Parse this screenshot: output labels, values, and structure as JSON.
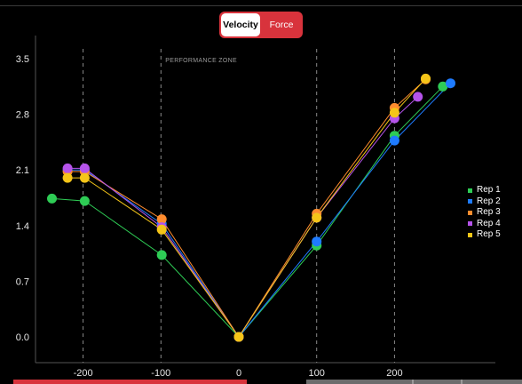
{
  "toggle": {
    "velocity_label": "Velocity",
    "force_label": "Force",
    "active": "Velocity",
    "active_bg": "#ffffff",
    "bg": "#d8333c"
  },
  "chart_data": {
    "type": "line",
    "annotation": "PERFORMANCE ZONE",
    "xlim": [
      -265,
      305
    ],
    "ylim": [
      -0.33,
      3.5
    ],
    "x_ticks": [
      "-200",
      "-100",
      "0",
      "100",
      "200"
    ],
    "y_ticks": [
      "3.5",
      "2.8",
      "2.1",
      "1.4",
      "0.7",
      "0.0"
    ],
    "vlines": [
      -200,
      -100,
      100,
      200
    ],
    "legend_position": "right",
    "series": [
      {
        "name": "Rep 1",
        "color": "#2ecc55",
        "points": [
          [
            -240,
            1.74
          ],
          [
            -198,
            1.71
          ],
          [
            -99,
            1.03
          ],
          [
            0,
            0.0
          ],
          [
            100,
            1.15
          ],
          [
            200,
            2.53
          ],
          [
            262,
            3.15
          ]
        ]
      },
      {
        "name": "Rep 2",
        "color": "#1e7bff",
        "points": [
          [
            -220,
            2.1
          ],
          [
            -198,
            2.1
          ],
          [
            -99,
            1.42
          ],
          [
            0,
            0.0
          ],
          [
            100,
            1.2
          ],
          [
            200,
            2.47
          ],
          [
            272,
            3.19
          ]
        ]
      },
      {
        "name": "Rep 3",
        "color": "#ff8c2e",
        "points": [
          [
            -220,
            2.08
          ],
          [
            -198,
            2.08
          ],
          [
            -99,
            1.48
          ],
          [
            0,
            0.0
          ],
          [
            100,
            1.55
          ],
          [
            200,
            2.88
          ],
          [
            240,
            3.24
          ]
        ]
      },
      {
        "name": "Rep 4",
        "color": "#b553ea",
        "points": [
          [
            -220,
            2.12
          ],
          [
            -198,
            2.12
          ],
          [
            -99,
            1.38
          ],
          [
            0,
            0.0
          ],
          [
            100,
            1.5
          ],
          [
            200,
            2.75
          ],
          [
            230,
            3.02
          ]
        ]
      },
      {
        "name": "Rep 5",
        "color": "#f5c518",
        "points": [
          [
            -220,
            2.0
          ],
          [
            -198,
            2.0
          ],
          [
            -99,
            1.35
          ],
          [
            0,
            0.0
          ],
          [
            100,
            1.5
          ],
          [
            200,
            2.82
          ],
          [
            240,
            3.25
          ]
        ]
      }
    ]
  }
}
